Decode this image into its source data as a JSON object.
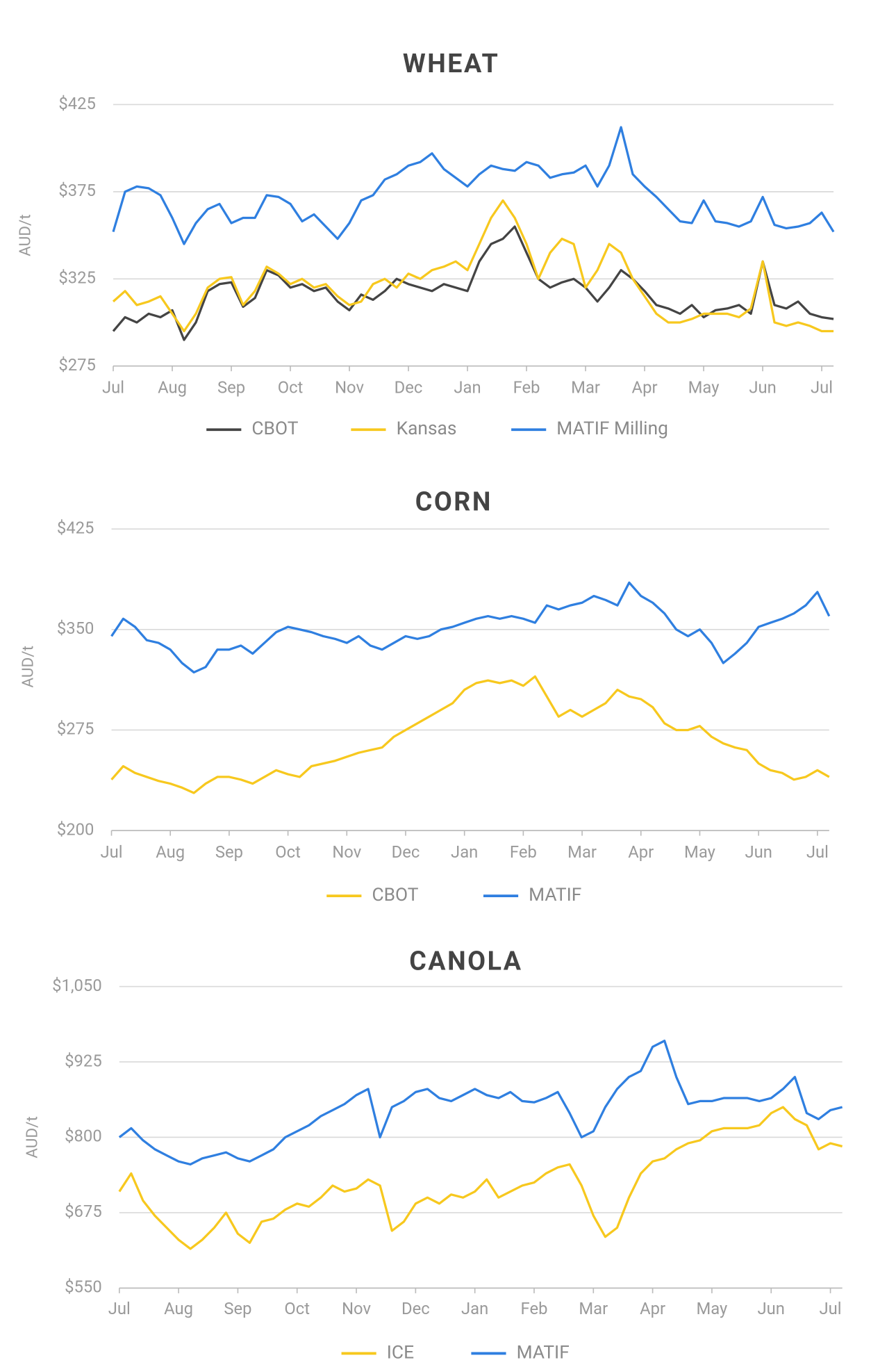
{
  "chart_data": [
    {
      "type": "line",
      "title": "WHEAT",
      "y_label": "AUD/t",
      "grid": true,
      "categories": [
        "Jul",
        null,
        null,
        null,
        null,
        "Aug",
        null,
        null,
        null,
        null,
        "Sep",
        null,
        null,
        null,
        null,
        "Oct",
        null,
        null,
        null,
        null,
        "Nov",
        null,
        null,
        null,
        null,
        "Dec",
        null,
        null,
        null,
        null,
        "Jan",
        null,
        null,
        null,
        null,
        "Feb",
        null,
        null,
        null,
        null,
        "Mar",
        null,
        null,
        null,
        null,
        "Apr",
        null,
        null,
        null,
        null,
        "May",
        null,
        null,
        null,
        null,
        "Jun",
        null,
        null,
        null,
        null,
        "Jul",
        null
      ],
      "ylim": [
        275,
        425
      ],
      "yticks": [
        {
          "value": 275,
          "label": "$275"
        },
        {
          "value": 325,
          "label": "$325"
        },
        {
          "value": 375,
          "label": "$375"
        },
        {
          "value": 425,
          "label": "$425"
        }
      ],
      "series": [
        {
          "name": "CBOT",
          "color": "#444444",
          "values": [
            295,
            303,
            300,
            305,
            303,
            307,
            290,
            300,
            318,
            322,
            323,
            309,
            314,
            330,
            327,
            320,
            322,
            318,
            320,
            312,
            307,
            316,
            313,
            318,
            325,
            322,
            320,
            318,
            322,
            320,
            318,
            335,
            345,
            348,
            355,
            340,
            325,
            320,
            323,
            325,
            320,
            312,
            320,
            330,
            325,
            318,
            310,
            308,
            305,
            310,
            303,
            307,
            308,
            310,
            305,
            335,
            310,
            308,
            312,
            305,
            303,
            302
          ]
        },
        {
          "name": "Kansas",
          "color": "#f7c81e",
          "values": [
            312,
            318,
            310,
            312,
            315,
            305,
            295,
            305,
            320,
            325,
            326,
            310,
            318,
            332,
            328,
            322,
            325,
            320,
            322,
            315,
            310,
            312,
            322,
            325,
            320,
            328,
            325,
            330,
            332,
            335,
            330,
            345,
            360,
            370,
            360,
            345,
            325,
            340,
            348,
            345,
            320,
            330,
            345,
            340,
            325,
            315,
            305,
            300,
            300,
            302,
            305,
            305,
            305,
            303,
            308,
            335,
            300,
            298,
            300,
            298,
            295,
            295
          ]
        },
        {
          "name": "MATIF Milling",
          "color": "#2f7fe0",
          "values": [
            352,
            375,
            378,
            377,
            373,
            360,
            345,
            357,
            365,
            368,
            357,
            360,
            360,
            373,
            372,
            368,
            358,
            362,
            355,
            348,
            357,
            370,
            373,
            382,
            385,
            390,
            392,
            397,
            388,
            383,
            378,
            385,
            390,
            388,
            387,
            392,
            390,
            383,
            385,
            386,
            390,
            378,
            390,
            412,
            385,
            378,
            372,
            365,
            358,
            357,
            370,
            358,
            357,
            355,
            358,
            372,
            356,
            354,
            355,
            357,
            363,
            352
          ]
        }
      ]
    },
    {
      "type": "line",
      "title": "CORN",
      "y_label": "AUD/t",
      "grid": true,
      "categories": [
        "Jul",
        null,
        null,
        null,
        null,
        "Aug",
        null,
        null,
        null,
        null,
        "Sep",
        null,
        null,
        null,
        null,
        "Oct",
        null,
        null,
        null,
        null,
        "Nov",
        null,
        null,
        null,
        null,
        "Dec",
        null,
        null,
        null,
        null,
        "Jan",
        null,
        null,
        null,
        null,
        "Feb",
        null,
        null,
        null,
        null,
        "Mar",
        null,
        null,
        null,
        null,
        "Apr",
        null,
        null,
        null,
        null,
        "May",
        null,
        null,
        null,
        null,
        "Jun",
        null,
        null,
        null,
        null,
        "Jul",
        null
      ],
      "ylim": [
        200,
        425
      ],
      "yticks": [
        {
          "value": 200,
          "label": "$200"
        },
        {
          "value": 275,
          "label": "$275"
        },
        {
          "value": 350,
          "label": "$350"
        },
        {
          "value": 425,
          "label": "$425"
        }
      ],
      "series": [
        {
          "name": "CBOT",
          "color": "#f7c81e",
          "values": [
            238,
            248,
            243,
            240,
            237,
            235,
            232,
            228,
            235,
            240,
            240,
            238,
            235,
            240,
            245,
            242,
            240,
            248,
            250,
            252,
            255,
            258,
            260,
            262,
            270,
            275,
            280,
            285,
            290,
            295,
            305,
            310,
            312,
            310,
            312,
            308,
            315,
            300,
            285,
            290,
            285,
            290,
            295,
            305,
            300,
            298,
            292,
            280,
            275,
            275,
            278,
            270,
            265,
            262,
            260,
            250,
            245,
            243,
            238,
            240,
            245,
            240
          ]
        },
        {
          "name": "MATIF",
          "color": "#2f7fe0",
          "values": [
            345,
            358,
            352,
            342,
            340,
            335,
            325,
            318,
            322,
            335,
            335,
            338,
            332,
            340,
            348,
            352,
            350,
            348,
            345,
            343,
            340,
            345,
            338,
            335,
            340,
            345,
            343,
            345,
            350,
            352,
            355,
            358,
            360,
            358,
            360,
            358,
            355,
            368,
            365,
            368,
            370,
            375,
            372,
            368,
            385,
            375,
            370,
            362,
            350,
            345,
            350,
            340,
            325,
            332,
            340,
            352,
            355,
            358,
            362,
            368,
            378,
            360
          ]
        }
      ]
    },
    {
      "type": "line",
      "title": "CANOLA",
      "y_label": "AUD/t",
      "grid": true,
      "categories": [
        "Jul",
        null,
        null,
        null,
        null,
        "Aug",
        null,
        null,
        null,
        null,
        "Sep",
        null,
        null,
        null,
        null,
        "Oct",
        null,
        null,
        null,
        null,
        "Nov",
        null,
        null,
        null,
        null,
        "Dec",
        null,
        null,
        null,
        null,
        "Jan",
        null,
        null,
        null,
        null,
        "Feb",
        null,
        null,
        null,
        null,
        "Mar",
        null,
        null,
        null,
        null,
        "Apr",
        null,
        null,
        null,
        null,
        "May",
        null,
        null,
        null,
        null,
        "Jun",
        null,
        null,
        null,
        null,
        "Jul",
        null
      ],
      "ylim": [
        550,
        1050
      ],
      "yticks": [
        {
          "value": 550,
          "label": "$550"
        },
        {
          "value": 675,
          "label": "$675"
        },
        {
          "value": 800,
          "label": "$800"
        },
        {
          "value": 925,
          "label": "$925"
        },
        {
          "value": 1050,
          "label": "$1,050"
        }
      ],
      "series": [
        {
          "name": "ICE",
          "color": "#f7c81e",
          "values": [
            710,
            740,
            695,
            670,
            650,
            630,
            615,
            630,
            650,
            675,
            640,
            625,
            660,
            665,
            680,
            690,
            685,
            700,
            720,
            710,
            715,
            730,
            720,
            645,
            660,
            690,
            700,
            690,
            705,
            700,
            710,
            730,
            700,
            710,
            720,
            725,
            740,
            750,
            755,
            720,
            670,
            635,
            650,
            700,
            740,
            760,
            765,
            780,
            790,
            795,
            810,
            815,
            815,
            815,
            820,
            840,
            850,
            830,
            820,
            780,
            790,
            785
          ]
        },
        {
          "name": "MATIF",
          "color": "#2f7fe0",
          "values": [
            800,
            815,
            795,
            780,
            770,
            760,
            755,
            765,
            770,
            775,
            765,
            760,
            770,
            780,
            800,
            810,
            820,
            835,
            845,
            855,
            870,
            880,
            800,
            850,
            860,
            875,
            880,
            865,
            860,
            870,
            880,
            870,
            865,
            875,
            860,
            858,
            865,
            875,
            840,
            800,
            810,
            850,
            880,
            900,
            910,
            950,
            960,
            900,
            855,
            860,
            860,
            865,
            865,
            865,
            860,
            865,
            880,
            900,
            840,
            830,
            845,
            850
          ]
        }
      ]
    }
  ]
}
